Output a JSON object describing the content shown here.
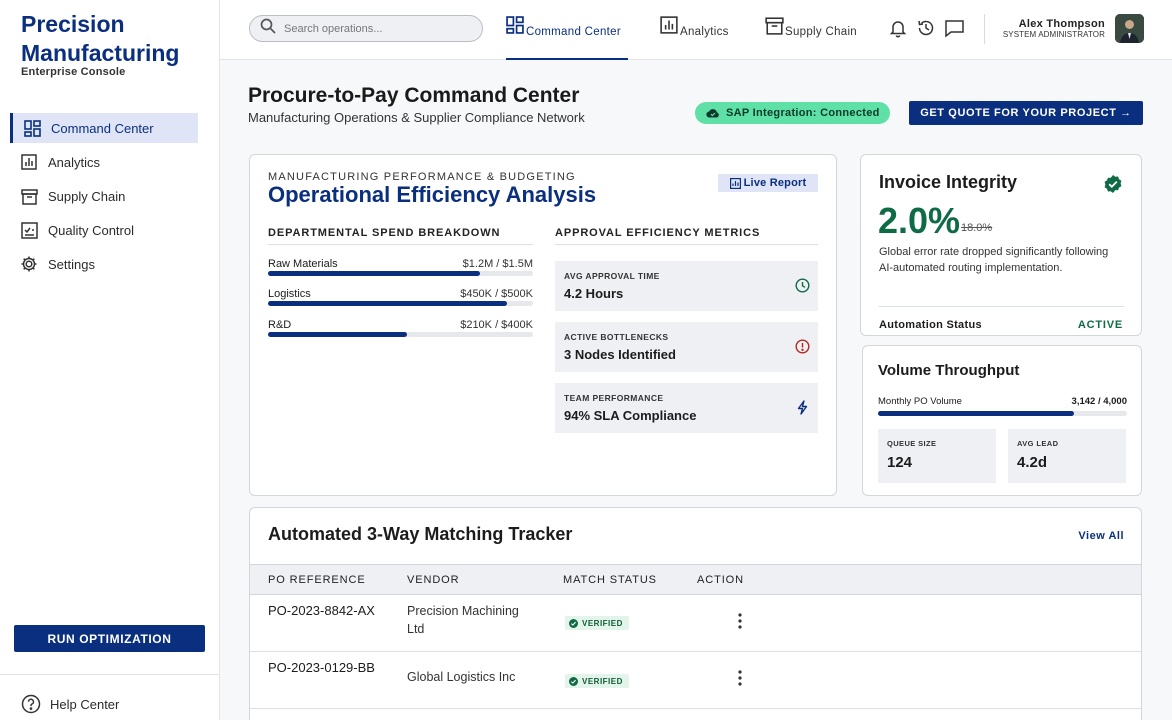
{
  "brand": {
    "title": "Precision Manufacturing",
    "subtitle": "Enterprise Console"
  },
  "sidebar": {
    "items": [
      {
        "label": "Command Center",
        "icon": "dashboard-icon",
        "active": true
      },
      {
        "label": "Analytics",
        "icon": "bar-chart-icon"
      },
      {
        "label": "Supply Chain",
        "icon": "archive-box-icon"
      },
      {
        "label": "Quality Control",
        "icon": "checklist-icon"
      },
      {
        "label": "Settings",
        "icon": "gear-icon"
      }
    ],
    "run_button": "RUN OPTIMIZATION",
    "help": "Help Center"
  },
  "topbar": {
    "search_placeholder": "Search operations...",
    "tabs": [
      {
        "label": "Command Center",
        "icon": "dashboard-icon",
        "active": true
      },
      {
        "label": "Analytics",
        "icon": "bar-chart-icon"
      },
      {
        "label": "Supply Chain",
        "icon": "archive-box-icon"
      }
    ],
    "icons": [
      "bell-icon",
      "history-icon",
      "chat-icon"
    ],
    "user": {
      "name": "Alex Thompson",
      "role": "SYSTEM ADMINISTRATOR"
    }
  },
  "header": {
    "title": "Procure-to-Pay Command Center",
    "subtitle": "Manufacturing Operations & Supplier Compliance Network",
    "integration_badge": "SAP Integration: Connected",
    "quote_button": "GET QUOTE FOR YOUR PROJECT →"
  },
  "efficiency": {
    "kicker": "MANUFACTURING PERFORMANCE & BUDGETING",
    "title": "Operational Efficiency Analysis",
    "live_label": "Live Report",
    "spend_heading": "DEPARTMENTAL SPEND BREAKDOWN",
    "metrics_heading": "APPROVAL EFFICIENCY METRICS",
    "spend": [
      {
        "name": "Raw Materials",
        "value": "$1.2M / $1.5M",
        "fraction": 0.8
      },
      {
        "name": "Logistics",
        "value": "$450K / $500K",
        "fraction": 0.9
      },
      {
        "name": "R&D",
        "value": "$210K / $400K",
        "fraction": 0.525
      }
    ],
    "metrics": [
      {
        "label": "AVG APPROVAL TIME",
        "value": "4.2 Hours",
        "icon": "clock-icon"
      },
      {
        "label": "ACTIVE BOTTLENECKS",
        "value": "3 Nodes Identified",
        "icon": "alert-circle-icon"
      },
      {
        "label": "TEAM PERFORMANCE",
        "value": "94% SLA Compliance",
        "icon": "lightning-icon"
      }
    ]
  },
  "invoice": {
    "title": "Invoice Integrity",
    "rate": "2.0%",
    "previous_rate": "18.0%",
    "description": "Global error rate dropped significantly following AI-automated routing implementation.",
    "status_label": "Automation Status",
    "status_value": "ACTIVE"
  },
  "volume": {
    "title": "Volume Throughput",
    "row_label": "Monthly PO Volume",
    "row_value": "3,142 / 4,000",
    "fraction": 0.7855,
    "stats": [
      {
        "label": "QUEUE SIZE",
        "value": "124"
      },
      {
        "label": "AVG LEAD",
        "value": "4.2d"
      }
    ]
  },
  "tracker": {
    "title": "Automated 3-Way Matching Tracker",
    "view_all": "View All",
    "columns": [
      "PO REFERENCE",
      "VENDOR",
      "MATCH STATUS",
      "ACTION"
    ],
    "rows": [
      {
        "po": "PO-2023-8842-AX",
        "vendor": "Precision Machining Ltd",
        "status": "VERIFIED"
      },
      {
        "po": "PO-2023-0129-BB",
        "vendor": "Global Logistics Inc",
        "status": "VERIFIED"
      }
    ]
  },
  "colors": {
    "primary": "#0b2f7f",
    "success": "#0f6b45",
    "badge_green": "#5ee0a6",
    "panel": "#eef0f3"
  }
}
